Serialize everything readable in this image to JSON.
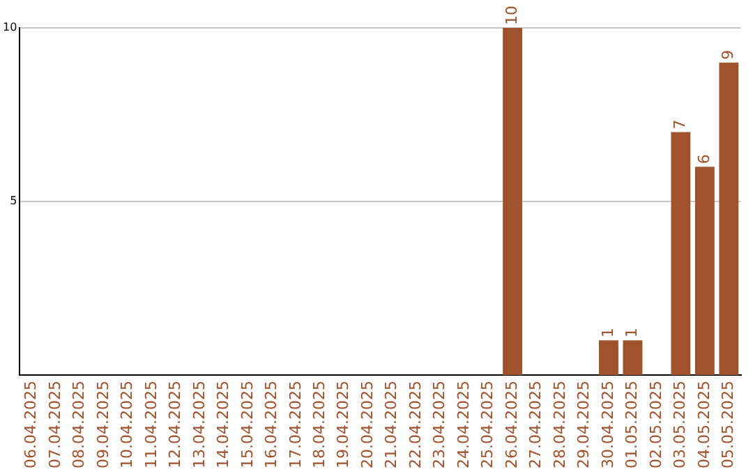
{
  "chart_data": {
    "type": "bar",
    "categories": [
      "06.04.2025",
      "07.04.2025",
      "08.04.2025",
      "09.04.2025",
      "10.04.2025",
      "11.04.2025",
      "12.04.2025",
      "13.04.2025",
      "14.04.2025",
      "15.04.2025",
      "16.04.2025",
      "17.04.2025",
      "18.04.2025",
      "19.04.2025",
      "20.04.2025",
      "21.04.2025",
      "22.04.2025",
      "23.04.2025",
      "24.04.2025",
      "25.04.2025",
      "26.04.2025",
      "27.04.2025",
      "28.04.2025",
      "29.04.2025",
      "30.04.2025",
      "01.05.2025",
      "02.05.2025",
      "03.05.2025",
      "04.05.2025",
      "05.05.2025"
    ],
    "values": [
      0,
      0,
      0,
      0,
      0,
      0,
      0,
      0,
      0,
      0,
      0,
      0,
      0,
      0,
      0,
      0,
      0,
      0,
      0,
      0,
      10,
      0,
      0,
      0,
      1,
      1,
      0,
      7,
      6,
      9
    ],
    "value_labels": [
      null,
      null,
      null,
      null,
      null,
      null,
      null,
      null,
      null,
      null,
      null,
      null,
      null,
      null,
      null,
      null,
      null,
      null,
      null,
      null,
      "10",
      null,
      null,
      null,
      "1",
      "1",
      null,
      "7",
      "6",
      "9"
    ],
    "color": "#a0522d",
    "ylim": [
      0,
      10
    ],
    "yticks": [
      5,
      10
    ],
    "grid": "y",
    "legend": false
  }
}
